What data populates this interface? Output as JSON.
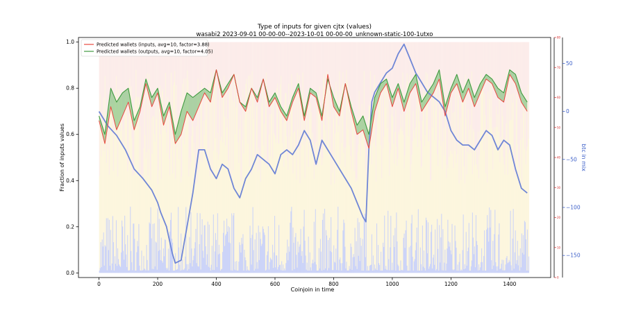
{
  "chart_data": {
    "type": "line",
    "title": "Type of inputs for given cjtx (values)",
    "subtitle": "wasabi2 2023-09-01 00-00-00--2023-10-01 00-00-00_unknown-static-100-1utxo",
    "xlabel": "Coinjoin in time",
    "ylabel": "Fraction of inputs values",
    "ylabel_right2": "btc in mix",
    "xlim": [
      -70,
      1540
    ],
    "ylim": [
      -0.02,
      1.02
    ],
    "xticks": [
      0,
      200,
      400,
      600,
      800,
      1000,
      1200,
      1400
    ],
    "yticks": [
      0.0,
      0.2,
      0.4,
      0.6,
      0.8,
      1.0
    ],
    "right1_ticks": [
      0,
      10,
      20,
      30,
      40,
      50,
      60,
      70,
      80
    ],
    "right1_ylim": [
      0,
      80
    ],
    "right2_ticks": [
      -150,
      -100,
      -50,
      0,
      50
    ],
    "right2_ylim": [
      -173,
      77
    ],
    "grid": false,
    "legend_position": "top-left",
    "legend": [
      {
        "label": "Predicted wallets (inputs, avg=10, factor=3.88)",
        "color": "#e8473f"
      },
      {
        "label": "Predicted wallets (outputs, avg=10, factor=4.05)",
        "color": "#48a848"
      }
    ],
    "colors": {
      "inputs": "#e8473f",
      "outputs": "#3f9a3f",
      "outputs_fill": "#4caf50",
      "btc": "#6f86d6",
      "right_axis": "#d62728",
      "far_right_axis": "#3c5fc8",
      "bg_red": "#f4c6c0",
      "bg_yellow": "#f8e7ad",
      "bg_blue": "#aab6f2"
    },
    "series": [
      {
        "name": "Predicted wallets (inputs, avg=10, factor=3.88)",
        "x": [
          0,
          20,
          40,
          60,
          80,
          100,
          120,
          140,
          160,
          180,
          200,
          220,
          240,
          260,
          280,
          300,
          320,
          340,
          360,
          380,
          400,
          420,
          440,
          460,
          480,
          500,
          520,
          540,
          560,
          580,
          600,
          620,
          640,
          660,
          680,
          700,
          720,
          740,
          760,
          780,
          800,
          820,
          840,
          860,
          880,
          900,
          920,
          940,
          960,
          980,
          1000,
          1020,
          1040,
          1060,
          1080,
          1100,
          1120,
          1140,
          1160,
          1180,
          1200,
          1220,
          1240,
          1260,
          1280,
          1300,
          1320,
          1340,
          1360,
          1380,
          1400,
          1420,
          1440,
          1460
        ],
        "y": [
          0.66,
          0.56,
          0.72,
          0.62,
          0.68,
          0.74,
          0.62,
          0.7,
          0.82,
          0.72,
          0.78,
          0.64,
          0.72,
          0.56,
          0.6,
          0.7,
          0.66,
          0.72,
          0.78,
          0.74,
          0.88,
          0.76,
          0.8,
          0.86,
          0.74,
          0.7,
          0.8,
          0.74,
          0.84,
          0.72,
          0.76,
          0.7,
          0.66,
          0.74,
          0.8,
          0.66,
          0.78,
          0.76,
          0.66,
          0.86,
          0.72,
          0.68,
          0.82,
          0.7,
          0.6,
          0.62,
          0.54,
          0.7,
          0.78,
          0.82,
          0.72,
          0.8,
          0.7,
          0.78,
          0.82,
          0.7,
          0.74,
          0.78,
          0.84,
          0.68,
          0.78,
          0.82,
          0.74,
          0.8,
          0.72,
          0.78,
          0.84,
          0.82,
          0.76,
          0.74,
          0.86,
          0.82,
          0.74,
          0.7
        ]
      },
      {
        "name": "Predicted wallets (outputs, avg=10, factor=4.05)",
        "x": [
          0,
          20,
          40,
          60,
          80,
          100,
          120,
          140,
          160,
          180,
          200,
          220,
          240,
          260,
          280,
          300,
          320,
          340,
          360,
          380,
          400,
          420,
          440,
          460,
          480,
          500,
          520,
          540,
          560,
          580,
          600,
          620,
          640,
          660,
          680,
          700,
          720,
          740,
          760,
          780,
          800,
          820,
          840,
          860,
          880,
          900,
          920,
          940,
          960,
          980,
          1000,
          1020,
          1040,
          1060,
          1080,
          1100,
          1120,
          1140,
          1160,
          1180,
          1200,
          1220,
          1240,
          1260,
          1280,
          1300,
          1320,
          1340,
          1360,
          1380,
          1400,
          1420,
          1440,
          1460
        ],
        "y": [
          0.68,
          0.6,
          0.8,
          0.74,
          0.78,
          0.8,
          0.66,
          0.72,
          0.84,
          0.76,
          0.8,
          0.68,
          0.74,
          0.6,
          0.7,
          0.78,
          0.76,
          0.78,
          0.8,
          0.78,
          0.88,
          0.78,
          0.82,
          0.86,
          0.74,
          0.72,
          0.8,
          0.76,
          0.84,
          0.74,
          0.78,
          0.72,
          0.68,
          0.76,
          0.82,
          0.68,
          0.8,
          0.78,
          0.68,
          0.84,
          0.76,
          0.7,
          0.82,
          0.72,
          0.64,
          0.68,
          0.6,
          0.76,
          0.82,
          0.84,
          0.76,
          0.82,
          0.74,
          0.82,
          0.86,
          0.74,
          0.78,
          0.82,
          0.88,
          0.72,
          0.8,
          0.86,
          0.78,
          0.84,
          0.76,
          0.82,
          0.86,
          0.84,
          0.8,
          0.78,
          0.88,
          0.86,
          0.78,
          0.74
        ]
      },
      {
        "name": "btc in mix",
        "axis": "right2",
        "x": [
          0,
          30,
          60,
          90,
          120,
          150,
          180,
          200,
          210,
          230,
          250,
          260,
          280,
          300,
          320,
          340,
          360,
          380,
          400,
          420,
          440,
          460,
          480,
          500,
          520,
          540,
          560,
          580,
          600,
          620,
          640,
          660,
          680,
          700,
          720,
          740,
          760,
          780,
          800,
          820,
          840,
          860,
          880,
          900,
          910,
          920,
          930,
          940,
          960,
          980,
          1000,
          1020,
          1040,
          1060,
          1080,
          1100,
          1120,
          1140,
          1160,
          1180,
          1200,
          1220,
          1240,
          1260,
          1280,
          1300,
          1320,
          1340,
          1360,
          1380,
          1400,
          1420,
          1440,
          1460
        ],
        "y": [
          0,
          -15,
          -25,
          -40,
          -60,
          -70,
          -82,
          -95,
          -105,
          -120,
          -148,
          -158,
          -155,
          -120,
          -85,
          -40,
          -40,
          -60,
          -70,
          -55,
          -60,
          -80,
          -90,
          -70,
          -60,
          -45,
          -50,
          -55,
          -65,
          -45,
          -40,
          -45,
          -35,
          -20,
          -30,
          -55,
          -30,
          -40,
          -50,
          -60,
          -70,
          -80,
          -95,
          -110,
          -115,
          -40,
          10,
          20,
          30,
          40,
          45,
          60,
          70,
          55,
          40,
          30,
          20,
          15,
          10,
          0,
          -20,
          -30,
          -35,
          -35,
          -40,
          -30,
          -20,
          -25,
          -40,
          -30,
          -35,
          -60,
          -80,
          -85
        ]
      }
    ]
  }
}
